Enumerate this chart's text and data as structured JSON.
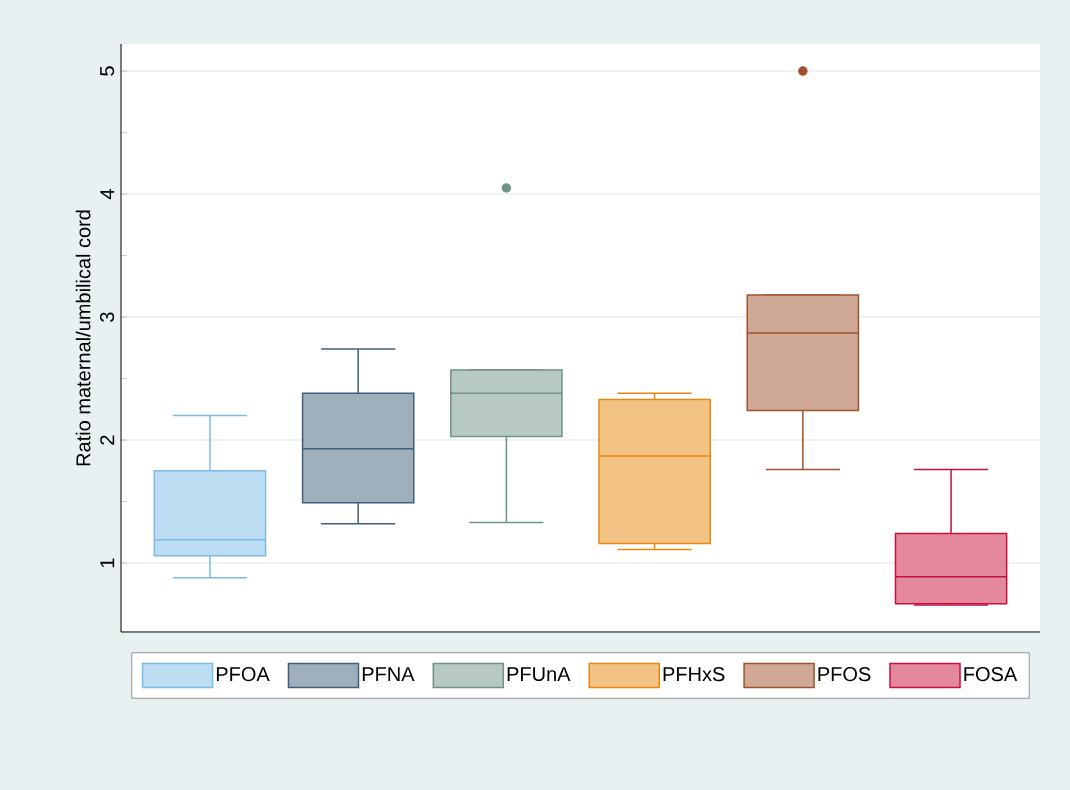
{
  "chart_data": {
    "type": "box",
    "ylabel": "Ratio maternal/umbilical cord",
    "categories": [
      null,
      null,
      null,
      null,
      null,
      null
    ],
    "series": [
      {
        "name": "PFOA",
        "color": "#7bbbe8",
        "boxes": [
          {
            "low": 0.88,
            "q1": 1.06,
            "median": 1.19,
            "q3": 1.75,
            "high": 2.2
          },
          null,
          null,
          null,
          null,
          null
        ]
      },
      {
        "name": "PFNA",
        "color": "#3f5f7a",
        "boxes": [
          null,
          {
            "low": 1.32,
            "q1": 1.49,
            "median": 1.93,
            "q3": 2.38,
            "high": 2.74
          },
          null,
          null,
          null,
          null
        ]
      },
      {
        "name": "PFUnA",
        "color": "#6f9384",
        "boxes": [
          null,
          null,
          {
            "low": 1.33,
            "q1": 2.03,
            "median": 2.38,
            "q3": 2.57,
            "high": 2.57,
            "outliers": [
              4.05
            ]
          },
          null,
          null,
          null
        ]
      },
      {
        "name": "PFHxS",
        "color": "#e8860e",
        "boxes": [
          null,
          null,
          null,
          {
            "low": 1.11,
            "q1": 1.16,
            "median": 1.87,
            "q3": 2.33,
            "high": 2.38
          },
          null,
          null
        ]
      },
      {
        "name": "PFOS",
        "color": "#a0522d",
        "boxes": [
          null,
          null,
          null,
          null,
          {
            "low": 1.76,
            "q1": 2.24,
            "median": 2.87,
            "q3": 3.18,
            "high": 3.18,
            "outliers": [
              5.0
            ]
          },
          null
        ]
      },
      {
        "name": "FOSA",
        "color": "#c8103d",
        "boxes": [
          null,
          null,
          null,
          null,
          null,
          {
            "low": 0.66,
            "q1": 0.67,
            "median": 0.89,
            "q3": 1.24,
            "high": 1.76
          }
        ]
      }
    ],
    "ylim": [
      0.44,
      5.22
    ],
    "yticks": [
      1,
      {
        "value": 1.5,
        "label": null
      },
      2,
      {
        "value": 2.5,
        "label": null
      },
      3,
      {
        "value": 3.5,
        "label": null
      },
      4,
      {
        "value": 4.5,
        "label": null
      },
      5
    ],
    "grid": "y",
    "legend": "bottom"
  }
}
